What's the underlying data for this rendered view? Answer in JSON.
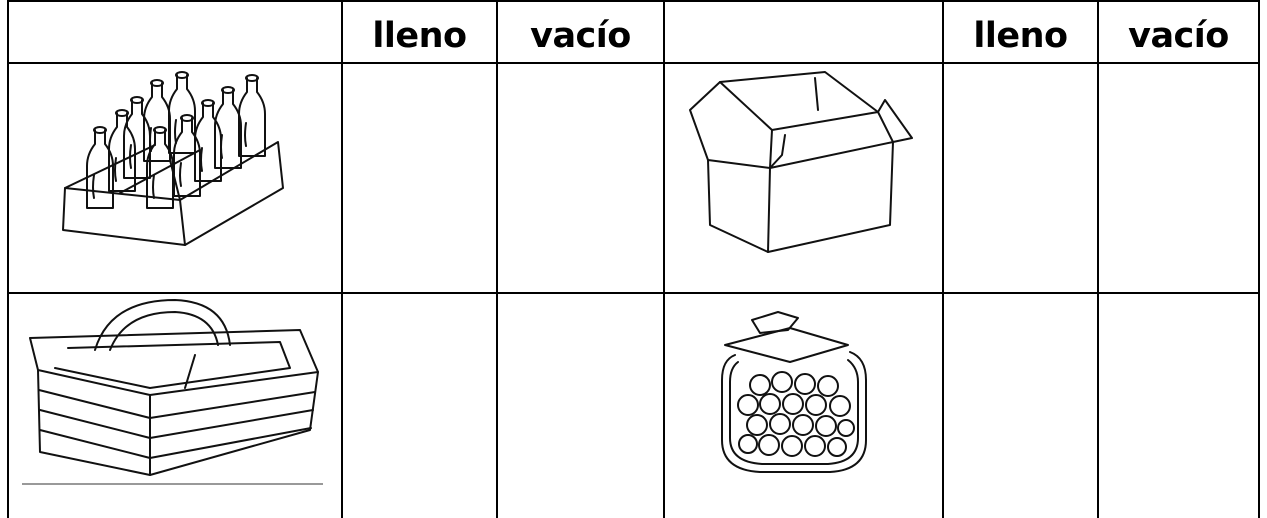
{
  "table": {
    "header": {
      "left": [
        "lleno",
        "vacío"
      ],
      "right": [
        "lleno",
        "vacío"
      ]
    }
  }
}
